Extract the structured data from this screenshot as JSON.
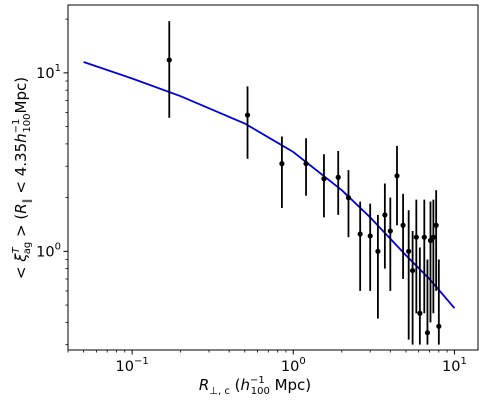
{
  "chart_data": {
    "type": "scatter",
    "xlabel": "R_{⊥,c} (h_{100}^{-1} Mpc)",
    "ylabel": "< ξ_{ag}^T > (R_∥ < 4.35 h_{100}^{-1} Mpc)",
    "xscale": "log",
    "yscale": "log",
    "xlim": [
      0.04,
      14
    ],
    "ylim": [
      0.28,
      24
    ],
    "xticks": [
      {
        "value": 0.1,
        "label": "10",
        "exp": "−1"
      },
      {
        "value": 1,
        "label": "10",
        "exp": "0"
      },
      {
        "value": 10,
        "label": "10",
        "exp": "1"
      }
    ],
    "yticks": [
      {
        "value": 1,
        "label": "10",
        "exp": "0"
      },
      {
        "value": 10,
        "label": "10",
        "exp": "1"
      }
    ],
    "grid": false,
    "legend": "none",
    "colors": {
      "model": "#0000dd",
      "points": "#000000"
    },
    "series": [
      {
        "kind": "errorbar",
        "points": [
          {
            "x": 0.17,
            "y": 11.8,
            "ylo": 5.6,
            "yhi": 19.5
          },
          {
            "x": 0.52,
            "y": 5.8,
            "ylo": 3.3,
            "yhi": 8.4
          },
          {
            "x": 0.85,
            "y": 3.1,
            "ylo": 1.75,
            "yhi": 4.4
          },
          {
            "x": 1.2,
            "y": 3.1,
            "ylo": 2.05,
            "yhi": 4.3
          },
          {
            "x": 1.55,
            "y": 2.55,
            "ylo": 1.55,
            "yhi": 3.5
          },
          {
            "x": 1.9,
            "y": 2.6,
            "ylo": 1.6,
            "yhi": 3.65
          },
          {
            "x": 2.2,
            "y": 2.0,
            "ylo": 1.2,
            "yhi": 2.85
          },
          {
            "x": 2.6,
            "y": 1.25,
            "ylo": 0.6,
            "yhi": 1.9
          },
          {
            "x": 3.0,
            "y": 1.22,
            "ylo": 0.6,
            "yhi": 1.85
          },
          {
            "x": 3.35,
            "y": 1.0,
            "ylo": 0.42,
            "yhi": 1.6
          },
          {
            "x": 3.7,
            "y": 1.6,
            "ylo": 0.8,
            "yhi": 2.4
          },
          {
            "x": 4.0,
            "y": 1.3,
            "ylo": 0.6,
            "yhi": 2.0
          },
          {
            "x": 4.4,
            "y": 2.65,
            "ylo": 1.4,
            "yhi": 3.9
          },
          {
            "x": 4.8,
            "y": 1.4,
            "ylo": 0.7,
            "yhi": 2.1
          },
          {
            "x": 5.2,
            "y": 1.0,
            "ylo": 0.32,
            "yhi": 1.7
          },
          {
            "x": 5.5,
            "y": 0.78,
            "ylo": 0.3,
            "yhi": 1.3
          },
          {
            "x": 5.8,
            "y": 1.2,
            "ylo": 0.45,
            "yhi": 1.95
          },
          {
            "x": 6.1,
            "y": 0.45,
            "ylo": 0.3,
            "yhi": 1.05
          },
          {
            "x": 6.5,
            "y": 1.2,
            "ylo": 0.45,
            "yhi": 1.95
          },
          {
            "x": 6.8,
            "y": 0.35,
            "ylo": 0.3,
            "yhi": 0.9
          },
          {
            "x": 7.1,
            "y": 1.15,
            "ylo": 0.4,
            "yhi": 1.9
          },
          {
            "x": 7.4,
            "y": 1.2,
            "ylo": 0.45,
            "yhi": 1.95
          },
          {
            "x": 7.7,
            "y": 1.4,
            "ylo": 0.6,
            "yhi": 2.2
          },
          {
            "x": 8.0,
            "y": 0.38,
            "ylo": 0.3,
            "yhi": 0.9
          }
        ]
      },
      {
        "kind": "line",
        "x": [
          0.05,
          0.1,
          0.2,
          0.5,
          1.0,
          2.0,
          3.0,
          5.0,
          7.0,
          10.0
        ],
        "y": [
          11.5,
          9.3,
          7.4,
          5.2,
          3.6,
          2.2,
          1.55,
          0.95,
          0.7,
          0.48
        ]
      }
    ]
  }
}
